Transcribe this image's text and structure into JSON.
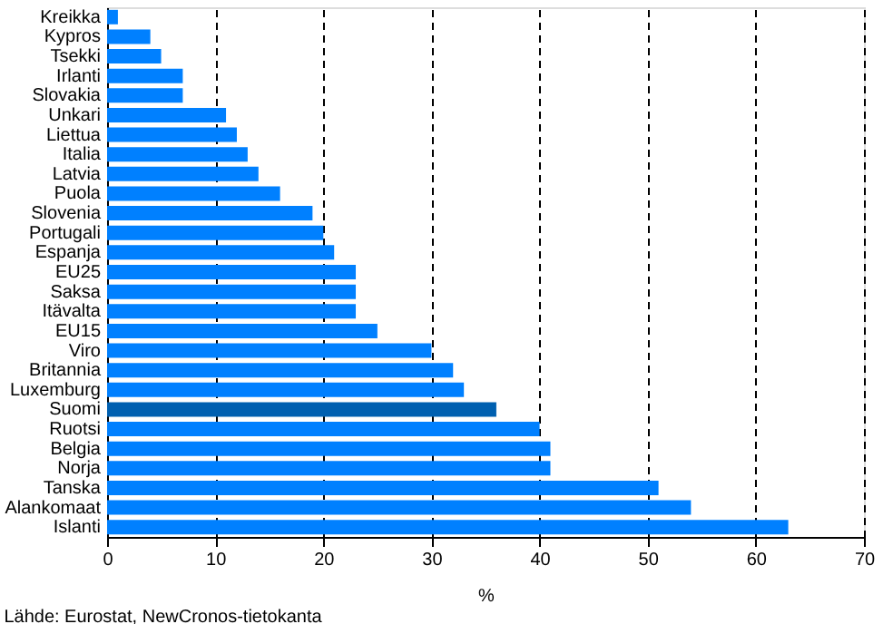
{
  "chart_data": {
    "type": "bar",
    "orientation": "horizontal",
    "categories": [
      "Kreikka",
      "Kypros",
      "Tsekki",
      "Irlanti",
      "Slovakia",
      "Unkari",
      "Liettua",
      "Italia",
      "Latvia",
      "Puola",
      "Slovenia",
      "Portugali",
      "Espanja",
      "EU25",
      "Saksa",
      "Itävalta",
      "EU15",
      "Viro",
      "Britannia",
      "Luxemburg",
      "Suomi",
      "Ruotsi",
      "Belgia",
      "Norja",
      "Tanska",
      "Alankomaat",
      "Islanti"
    ],
    "values": [
      1,
      4,
      5,
      7,
      7,
      11,
      12,
      13,
      14,
      16,
      19,
      20,
      21,
      23,
      23,
      23,
      25,
      30,
      32,
      33,
      36,
      40,
      41,
      41,
      51,
      54,
      63
    ],
    "colors": [
      "#0080ff",
      "#0080ff",
      "#0080ff",
      "#0080ff",
      "#0080ff",
      "#0080ff",
      "#0080ff",
      "#0080ff",
      "#0080ff",
      "#0080ff",
      "#0080ff",
      "#0080ff",
      "#0080ff",
      "#0080ff",
      "#0080ff",
      "#0080ff",
      "#0080ff",
      "#0080ff",
      "#0080ff",
      "#0080ff",
      "#0060b0",
      "#0080ff",
      "#0080ff",
      "#0080ff",
      "#0080ff",
      "#0080ff",
      "#0080ff"
    ],
    "xlim": [
      0,
      70
    ],
    "xticks": [
      0,
      10,
      20,
      30,
      40,
      50,
      60,
      70
    ],
    "xlabel": "%",
    "grid": "x",
    "annotations": [
      "Lähde: Eurostat, NewCronos-tietokanta"
    ]
  }
}
